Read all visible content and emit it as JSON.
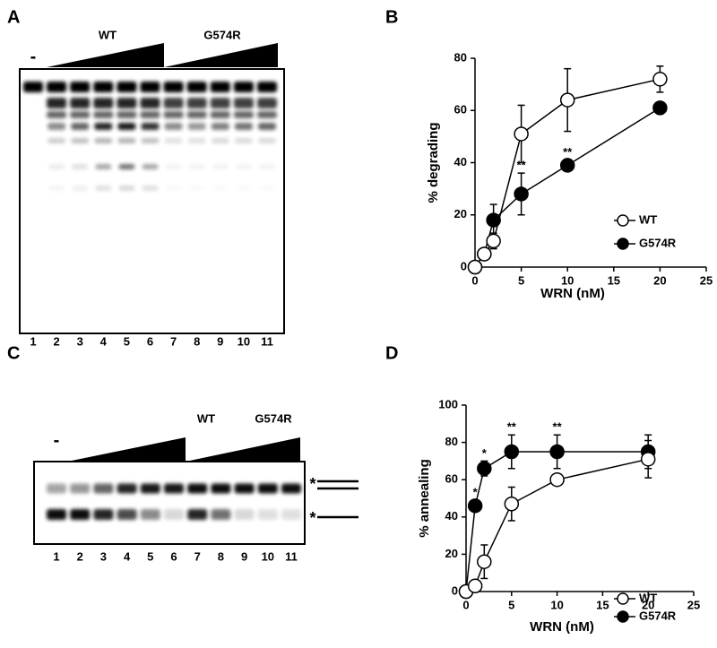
{
  "gel_a": {
    "label": "A",
    "minus": "-",
    "groups": [
      "WT",
      "G574R"
    ],
    "lanes": [
      "1",
      "2",
      "3",
      "4",
      "5",
      "6",
      "7",
      "8",
      "9",
      "10",
      "11"
    ]
  },
  "gel_c": {
    "label": "C",
    "minus": "-",
    "groups": [
      "WT",
      "G574R"
    ],
    "lanes": [
      "1",
      "2",
      "3",
      "4",
      "5",
      "6",
      "7",
      "8",
      "9",
      "10",
      "11"
    ],
    "markers": [
      "*",
      "*"
    ]
  },
  "chart_data": [
    {
      "type": "line",
      "label": "B",
      "ylabel": "% degrading",
      "xlabel": "WRN (nM)",
      "xlim": [
        0,
        25
      ],
      "xticks": [
        0,
        5,
        10,
        15,
        20,
        25
      ],
      "ylim": [
        0,
        80
      ],
      "yticks": [
        0,
        20,
        40,
        60,
        80
      ],
      "legend": "lower right",
      "series": [
        {
          "name": "WT",
          "color": "#ffffff",
          "x": [
            0,
            1,
            2,
            5,
            10,
            20
          ],
          "values": [
            0,
            5,
            10,
            51,
            64,
            72
          ],
          "errors": [
            0,
            1,
            3,
            11,
            12,
            5
          ],
          "value_annotations": [
            null,
            null,
            null,
            null,
            null,
            null
          ]
        },
        {
          "name": "G574R",
          "color": "#000000",
          "x": [
            0,
            1,
            2,
            5,
            10,
            20
          ],
          "values": [
            0,
            5,
            18,
            28,
            39,
            61
          ],
          "errors": [
            0,
            1,
            6,
            8,
            2,
            2
          ],
          "value_annotations": [
            null,
            null,
            null,
            "**",
            "**",
            null
          ]
        }
      ]
    },
    {
      "type": "line",
      "label": "D",
      "ylabel": "% annealing",
      "xlabel": "WRN (nM)",
      "xlim": [
        0,
        25
      ],
      "xticks": [
        0,
        5,
        10,
        15,
        20,
        25
      ],
      "ylim": [
        0,
        100
      ],
      "yticks": [
        0,
        20,
        40,
        60,
        80,
        100
      ],
      "legend": "lower right",
      "series": [
        {
          "name": "WT",
          "color": "#ffffff",
          "x": [
            0,
            1,
            2,
            5,
            10,
            20
          ],
          "values": [
            0,
            3,
            16,
            47,
            60,
            71
          ],
          "errors": [
            0,
            1,
            9,
            9,
            2,
            10
          ],
          "value_annotations": [
            null,
            null,
            null,
            null,
            null,
            null
          ]
        },
        {
          "name": "G574R",
          "color": "#000000",
          "x": [
            0,
            1,
            2,
            5,
            10,
            20
          ],
          "values": [
            0,
            46,
            66,
            75,
            75,
            75
          ],
          "errors": [
            0,
            3,
            4,
            9,
            9,
            9
          ],
          "value_annotations": [
            null,
            "*",
            "*",
            "**",
            "**",
            null
          ]
        }
      ]
    }
  ]
}
